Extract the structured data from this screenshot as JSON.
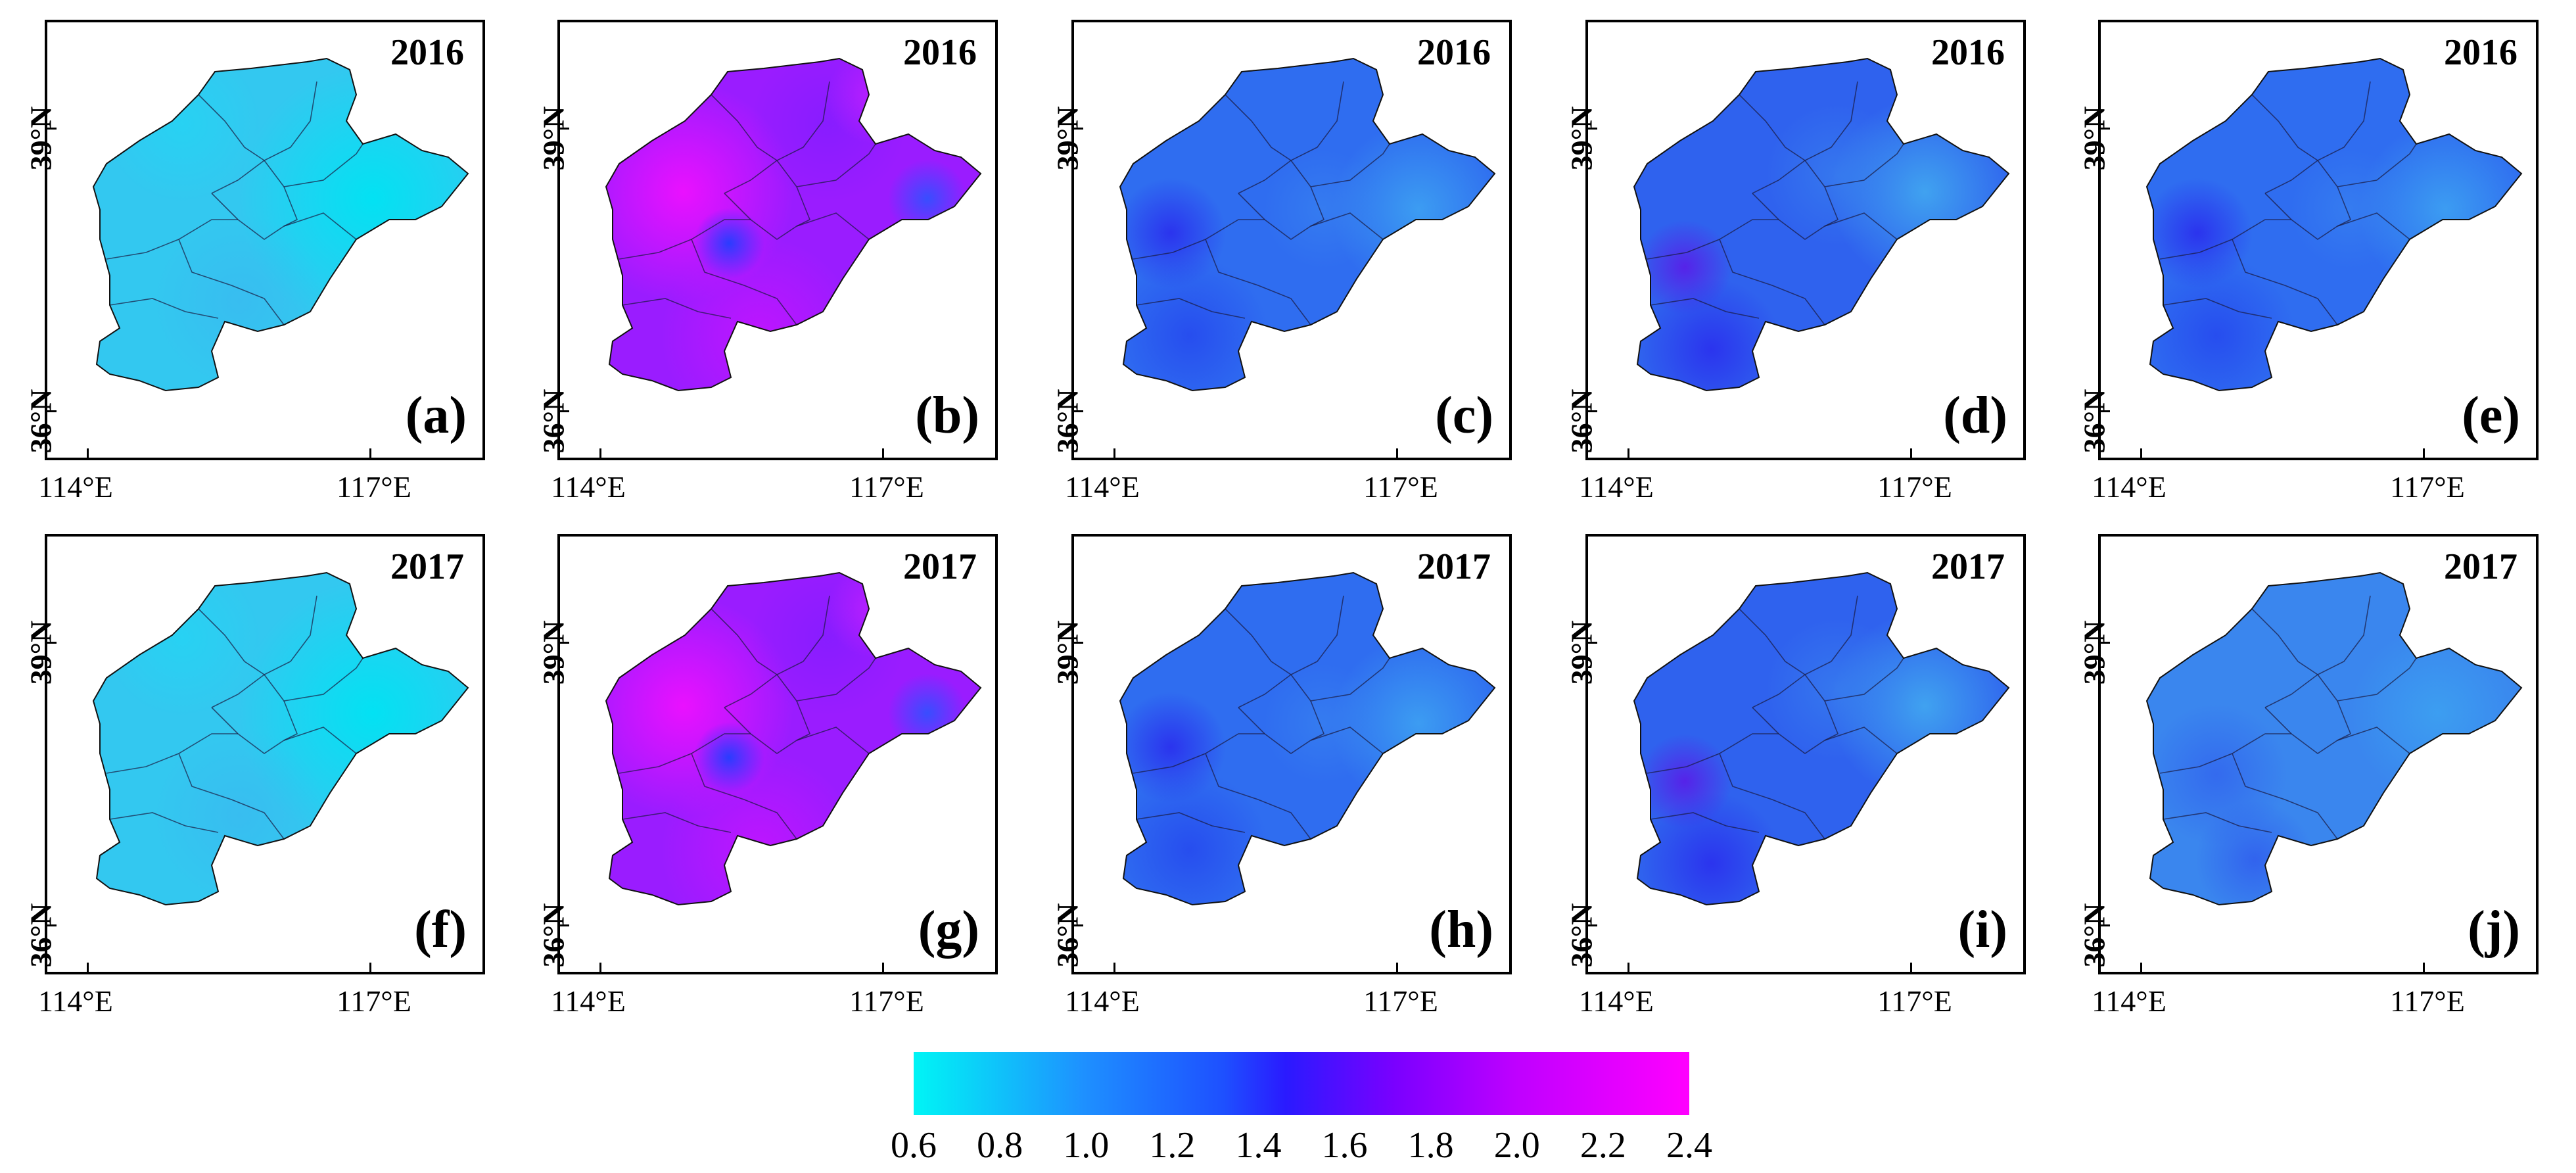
{
  "panels": [
    {
      "id": "a",
      "year": "2016",
      "label": "(a)",
      "scheme": "cyan"
    },
    {
      "id": "b",
      "year": "2016",
      "label": "(b)",
      "scheme": "magenta"
    },
    {
      "id": "c",
      "year": "2016",
      "label": "(c)",
      "scheme": "blue"
    },
    {
      "id": "d",
      "year": "2016",
      "label": "(d)",
      "scheme": "blue-dark"
    },
    {
      "id": "e",
      "year": "2016",
      "label": "(e)",
      "scheme": "blue"
    },
    {
      "id": "f",
      "year": "2017",
      "label": "(f)",
      "scheme": "cyan"
    },
    {
      "id": "g",
      "year": "2017",
      "label": "(g)",
      "scheme": "magenta"
    },
    {
      "id": "h",
      "year": "2017",
      "label": "(h)",
      "scheme": "blue"
    },
    {
      "id": "i",
      "year": "2017",
      "label": "(i)",
      "scheme": "blue-dark"
    },
    {
      "id": "j",
      "year": "2017",
      "label": "(j)",
      "scheme": "blue-light"
    }
  ],
  "axes": {
    "lat_labels": [
      "39°N",
      "36°N"
    ],
    "lon_labels": [
      "114°E",
      "117°E"
    ]
  },
  "colorbar": {
    "ticks": [
      "0.6",
      "0.8",
      "1.0",
      "1.2",
      "1.4",
      "1.6",
      "1.8",
      "2.0",
      "2.2",
      "2.4"
    ],
    "min_color": "#00f5f5",
    "max_color": "#ff00ff"
  }
}
